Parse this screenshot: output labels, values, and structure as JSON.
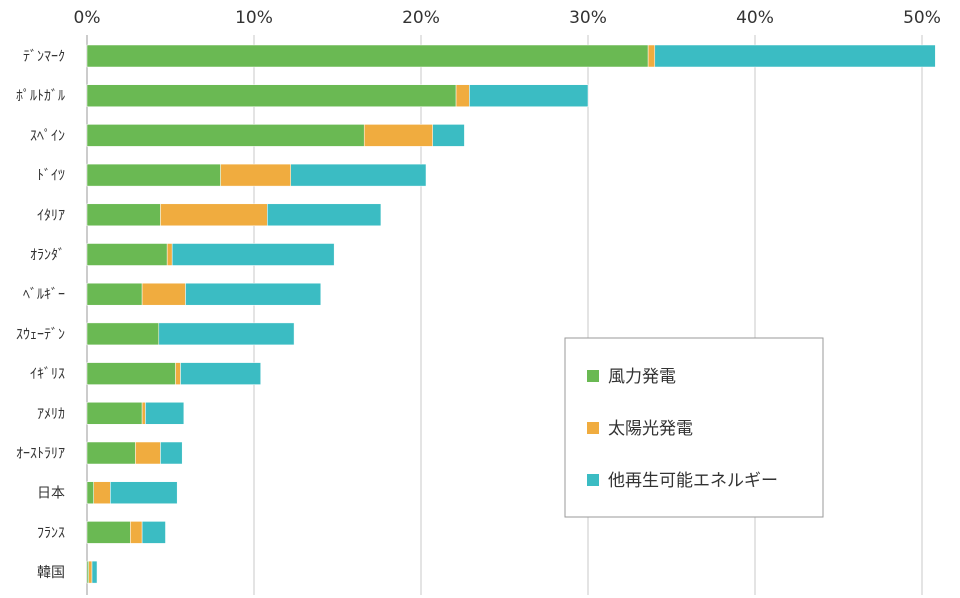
{
  "chart_data": {
    "type": "bar",
    "orientation": "horizontal",
    "stacked": true,
    "categories": [
      "ﾃﾞﾝﾏｰｸ",
      "ﾎﾟﾙﾄｶﾞﾙ",
      "ｽﾍﾟｲﾝ",
      "ﾄﾞｲﾂ",
      "ｲﾀﾘｱ",
      "ｵﾗﾝﾀﾞ",
      "ﾍﾞﾙｷﾞｰ",
      "ｽｳｪｰﾃﾞﾝ",
      "ｲｷﾞﾘｽ",
      "ｱﾒﾘｶ",
      "ｵｰｽﾄﾗﾘｱ",
      "日本",
      "ﾌﾗﾝｽ",
      "韓国"
    ],
    "series": [
      {
        "name": "風力発電",
        "color": "#6ab953",
        "values": [
          33.6,
          22.1,
          16.6,
          8.0,
          4.4,
          4.8,
          3.3,
          4.3,
          5.3,
          3.3,
          2.9,
          0.4,
          2.6,
          0.1
        ]
      },
      {
        "name": "太陽光発電",
        "color": "#f0ac3f",
        "values": [
          0.4,
          0.8,
          4.1,
          4.2,
          6.4,
          0.3,
          2.6,
          0.0,
          0.3,
          0.2,
          1.5,
          1.0,
          0.7,
          0.2
        ]
      },
      {
        "name": "他再生可能エネルギー",
        "color": "#3bbcc3",
        "values": [
          16.8,
          7.1,
          1.9,
          8.1,
          6.8,
          9.7,
          8.1,
          8.1,
          4.8,
          2.3,
          1.3,
          4.0,
          1.4,
          0.3
        ]
      }
    ],
    "xlim": [
      0,
      52
    ],
    "xticks": [
      "0%",
      "10%",
      "20%",
      "30%",
      "40%",
      "50%"
    ],
    "xtick_values": [
      0,
      10,
      20,
      30,
      40,
      50
    ],
    "grid": true,
    "legend_position": "right-middle"
  }
}
